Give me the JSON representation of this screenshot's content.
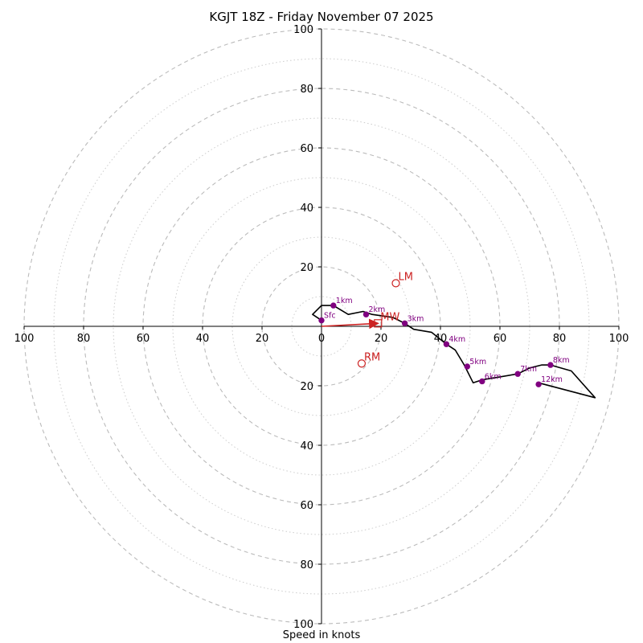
{
  "chart_data": {
    "type": "hodograph",
    "title": "KGJT 18Z - Friday November 07 2025",
    "xlabel": "Speed in knots",
    "max_speed": 100,
    "major_rings": [
      20,
      40,
      60,
      80,
      100
    ],
    "minor_rings": [
      10,
      30,
      50,
      70,
      90
    ],
    "tick_values": [
      20,
      40,
      60,
      80,
      100
    ],
    "tick_labels_x": [
      "100",
      "80",
      "60",
      "40",
      "20",
      "0",
      "20",
      "40",
      "60",
      "80",
      "100"
    ],
    "tick_labels_y": [
      "100",
      "80",
      "60",
      "40",
      "20",
      "20",
      "40",
      "60",
      "80",
      "100"
    ],
    "trace": [
      [
        0,
        2
      ],
      [
        -3,
        4
      ],
      [
        0,
        7
      ],
      [
        4,
        7
      ],
      [
        9,
        4
      ],
      [
        14,
        5
      ],
      [
        17,
        4
      ],
      [
        24,
        3
      ],
      [
        28,
        1
      ],
      [
        31,
        -1
      ],
      [
        37,
        -2
      ],
      [
        42,
        -6
      ],
      [
        45,
        -8
      ],
      [
        48,
        -13
      ],
      [
        51,
        -19
      ],
      [
        54,
        -18
      ],
      [
        60,
        -17
      ],
      [
        66,
        -16
      ],
      [
        70,
        -14
      ],
      [
        74,
        -13
      ],
      [
        77,
        -13
      ],
      [
        84,
        -15
      ],
      [
        92,
        -24
      ],
      [
        73,
        -19
      ]
    ],
    "markers": [
      {
        "label": "Sfc",
        "u": 0,
        "v": 2
      },
      {
        "label": "1km",
        "u": 4,
        "v": 7
      },
      {
        "label": "2km",
        "u": 15,
        "v": 4
      },
      {
        "label": "3km",
        "u": 28,
        "v": 1
      },
      {
        "label": "4km",
        "u": 42,
        "v": -6
      },
      {
        "label": "5km",
        "u": 49,
        "v": -13.5
      },
      {
        "label": "6km",
        "u": 54,
        "v": -18.5
      },
      {
        "label": "7km",
        "u": 66,
        "v": -16
      },
      {
        "label": "8km",
        "u": 77,
        "v": -13
      },
      {
        "label": "12km",
        "u": 73,
        "v": -19.5
      }
    ],
    "storm_motion": [
      {
        "label": "LM",
        "u": 25,
        "v": 14.5,
        "shape": "circle"
      },
      {
        "label": "RM",
        "u": 13.5,
        "v": -12.5,
        "shape": "circle"
      },
      {
        "label": "MW",
        "u": 19,
        "v": 1,
        "shape": "square"
      }
    ],
    "shear_vector": {
      "u": 19,
      "v": 1
    },
    "colors": {
      "trace": "#000000",
      "marker": "#800080",
      "storm": "#cc2222",
      "ring": "#bbbbbb",
      "axis": "#000000"
    }
  }
}
